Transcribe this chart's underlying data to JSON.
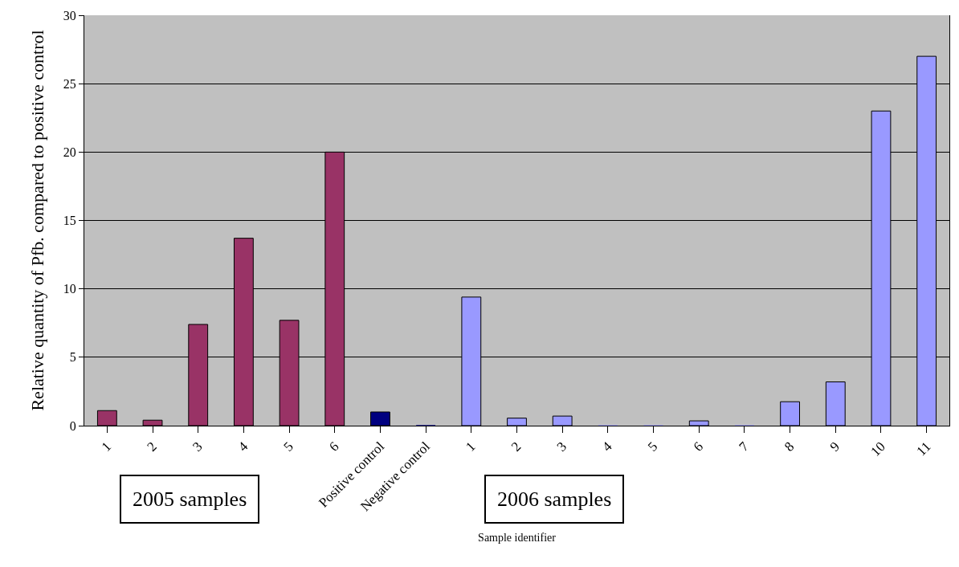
{
  "chart_data": {
    "type": "bar",
    "xlabel": "Sample identifier",
    "ylabel": "Relative quantity of Pfb. compared to positive control",
    "categories": [
      "1",
      "2",
      "3",
      "4",
      "5",
      "6",
      "Positive control",
      "Negative control",
      "1",
      "2",
      "3",
      "4",
      "5",
      "6",
      "7",
      "8",
      "9",
      "10",
      "11"
    ],
    "values": [
      1.1,
      0.4,
      7.4,
      13.7,
      7.7,
      20,
      1.0,
      0,
      9.4,
      0.55,
      0.7,
      0,
      0,
      0.35,
      0,
      1.75,
      3.2,
      23,
      27
    ],
    "colors": [
      "#993366",
      "#993366",
      "#993366",
      "#993366",
      "#993366",
      "#993366",
      "#000080",
      "#000080",
      "#9999ff",
      "#9999ff",
      "#9999ff",
      "#9999ff",
      "#9999ff",
      "#9999ff",
      "#9999ff",
      "#9999ff",
      "#9999ff",
      "#9999ff",
      "#9999ff"
    ],
    "ylim": [
      0,
      30
    ],
    "yticks": [
      0,
      5,
      10,
      15,
      20,
      25,
      30
    ],
    "grid": "y",
    "annotations": [
      "2005 samples",
      "2006 samples"
    ]
  }
}
